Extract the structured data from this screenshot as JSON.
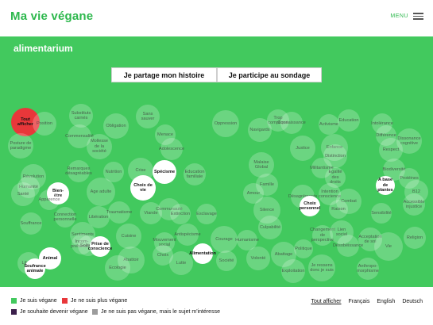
{
  "header": {
    "logo": "Ma vie végane",
    "menu_label": "MENU"
  },
  "colors": {
    "green": "#42c95e",
    "red": "#e8373a",
    "dark_purple": "#3b1f4b",
    "grey": "#9c9c9c"
  },
  "page": {
    "title": "alimentarium",
    "buttons": [
      "Je partage mon histoire",
      "Je participe au sondage"
    ]
  },
  "bubbles": [
    {
      "label": "Tout afficher",
      "style": "red"
    },
    {
      "label": "Position",
      "style": "faint"
    },
    {
      "label": "Posture de paradigme",
      "style": "faint"
    },
    {
      "label": "Substituts carnés",
      "style": "faint"
    },
    {
      "label": "Commensalité",
      "style": "faint"
    },
    {
      "label": "Mollesse de la société",
      "style": "faint"
    },
    {
      "label": "Obligation",
      "style": "faint"
    },
    {
      "label": "Sans sauver",
      "style": "faint"
    },
    {
      "label": "Menace",
      "style": "faint"
    },
    {
      "label": "Adolescence",
      "style": "faint"
    },
    {
      "label": "Oppression",
      "style": "faint"
    },
    {
      "label": "Trop compliqué",
      "style": "faint"
    },
    {
      "label": "Navigards",
      "style": "faint"
    },
    {
      "label": "Connaissance",
      "style": "faint"
    },
    {
      "label": "Activisme",
      "style": "faint"
    },
    {
      "label": "Education",
      "style": "faint"
    },
    {
      "label": "Intolérance",
      "style": "faint"
    },
    {
      "label": "Différence",
      "style": "faint"
    },
    {
      "label": "Dissonance cognitive",
      "style": "faint"
    },
    {
      "label": "Respect",
      "style": "faint"
    },
    {
      "label": "Justice",
      "style": "faint"
    },
    {
      "label": "Enfance",
      "style": "faint"
    },
    {
      "label": "Distinction",
      "style": "faint"
    },
    {
      "label": "Révolution",
      "style": "faint"
    },
    {
      "label": "Humanité",
      "style": "faint"
    },
    {
      "label": "Remarques désagréables",
      "style": "faint"
    },
    {
      "label": "Nutrition",
      "style": "faint"
    },
    {
      "label": "Crise",
      "style": "faint"
    },
    {
      "label": "Spécisme",
      "style": "solid"
    },
    {
      "label": "Education familiale",
      "style": "faint"
    },
    {
      "label": "Malaise Global",
      "style": "faint"
    },
    {
      "label": "Militantisme",
      "style": "faint"
    },
    {
      "label": "Egalité des droits",
      "style": "faint"
    },
    {
      "label": "Biodiversité",
      "style": "faint"
    },
    {
      "label": "Protéines",
      "style": "faint"
    },
    {
      "label": "Santé",
      "style": "faint"
    },
    {
      "label": "Age adulte",
      "style": "faint"
    },
    {
      "label": "Choix de vie",
      "style": "solid"
    },
    {
      "label": "Bien-être",
      "style": "solid"
    },
    {
      "label": "Apparence",
      "style": "faint"
    },
    {
      "label": "Famille",
      "style": "faint"
    },
    {
      "label": "Amour",
      "style": "faint"
    },
    {
      "label": "Désagréments",
      "style": "faint"
    },
    {
      "label": "Intention conscience",
      "style": "faint"
    },
    {
      "label": "Combat",
      "style": "faint"
    },
    {
      "label": "A base de plantes",
      "style": "solid"
    },
    {
      "label": "B12",
      "style": "faint"
    },
    {
      "label": "Connection personnelle",
      "style": "faint"
    },
    {
      "label": "Libération",
      "style": "faint"
    },
    {
      "label": "Traumatisme",
      "style": "faint"
    },
    {
      "label": "Viande",
      "style": "faint"
    },
    {
      "label": "Communauté",
      "style": "faint"
    },
    {
      "label": "Extinction",
      "style": "faint"
    },
    {
      "label": "Esclavage",
      "style": "faint"
    },
    {
      "label": "Silence",
      "style": "faint"
    },
    {
      "label": "Choix personnel",
      "style": "solid"
    },
    {
      "label": "Raison",
      "style": "faint"
    },
    {
      "label": "Sensibilité",
      "style": "faint"
    },
    {
      "label": "Accessible injustice",
      "style": "faint"
    },
    {
      "label": "Souffrance",
      "style": "faint"
    },
    {
      "label": "Sentiments",
      "style": "faint"
    },
    {
      "label": "Incom-préhension",
      "style": "faint"
    },
    {
      "label": "Culpabilité",
      "style": "faint"
    },
    {
      "label": "Changement de perspective",
      "style": "faint"
    },
    {
      "label": "Lien social",
      "style": "faint"
    },
    {
      "label": "Acceptation de soi",
      "style": "faint"
    },
    {
      "label": "Religion",
      "style": "faint"
    },
    {
      "label": "Solitude",
      "style": "faint"
    },
    {
      "label": "Cuisine",
      "style": "faint"
    },
    {
      "label": "Antispécisme",
      "style": "faint"
    },
    {
      "label": "Courage",
      "style": "faint"
    },
    {
      "label": "Humanisme",
      "style": "faint"
    },
    {
      "label": "Prise de conscience",
      "style": "solid"
    },
    {
      "label": "Mouvement social",
      "style": "faint"
    },
    {
      "label": "Politique",
      "style": "faint"
    },
    {
      "label": "Désobéissance",
      "style": "faint"
    },
    {
      "label": "Vie",
      "style": "faint"
    },
    {
      "label": "Liberté",
      "style": "faint"
    },
    {
      "label": "Animal",
      "style": "solid"
    },
    {
      "label": "Abattoir",
      "style": "faint"
    },
    {
      "label": "Choix",
      "style": "faint"
    },
    {
      "label": "Alimentation",
      "style": "solid"
    },
    {
      "label": "Société",
      "style": "faint"
    },
    {
      "label": "Volonté",
      "style": "faint"
    },
    {
      "label": "Abattage",
      "style": "faint"
    },
    {
      "label": "Exploitation",
      "style": "faint"
    },
    {
      "label": "Je ressens donc je suis",
      "style": "faint"
    },
    {
      "label": "Anthropo-morphisme",
      "style": "faint"
    },
    {
      "label": "Soufrance animale",
      "style": "solid"
    },
    {
      "label": "Ecologie",
      "style": "faint"
    },
    {
      "label": "Lutte",
      "style": "faint"
    },
    {
      "label": "Éthique",
      "style": "solid"
    },
    {
      "label": "Anti-carnisme",
      "style": "faint"
    }
  ],
  "legend": [
    {
      "label": "Je suis végane",
      "color": "#42c95e"
    },
    {
      "label": "Je ne suis plus végane",
      "color": "#e8373a"
    },
    {
      "label": "Je souhaite devenir végane",
      "color": "#3b1f4b"
    },
    {
      "label": "Je ne suis pas végane, mais le sujet m'intéresse",
      "color": "#9c9c9c"
    }
  ],
  "footer_links": {
    "show_all": "Tout afficher",
    "languages": [
      "Français",
      "English",
      "Deutsch"
    ]
  }
}
